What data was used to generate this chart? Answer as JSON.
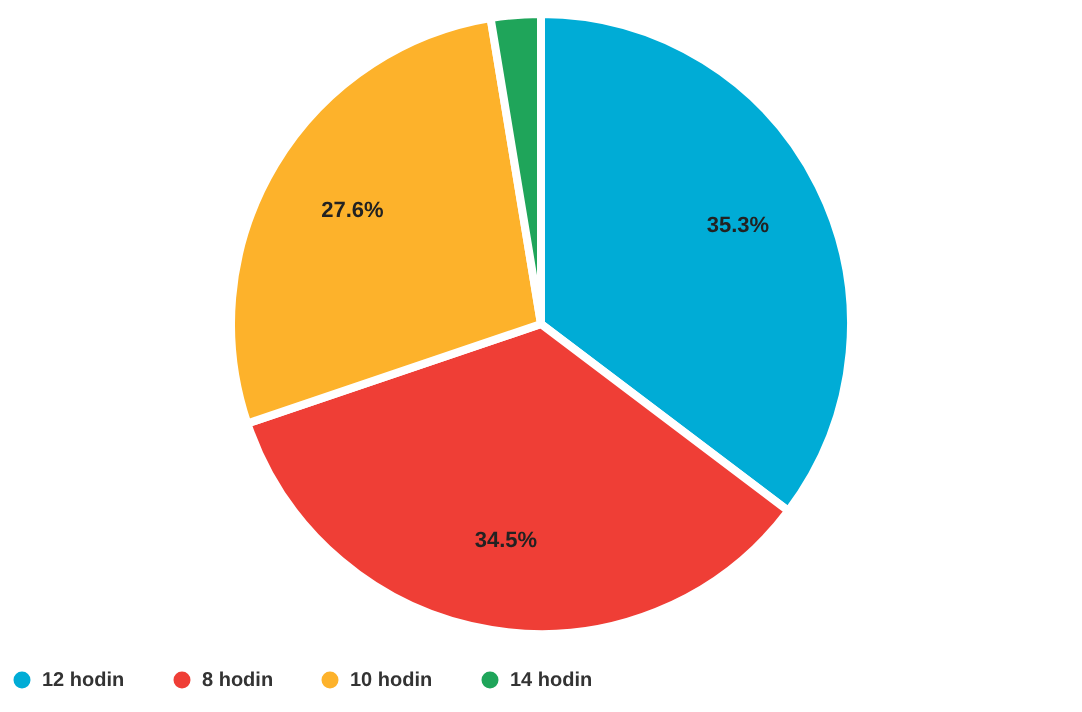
{
  "chart_data": {
    "type": "pie",
    "categories": [
      "12 hodin",
      "8 hodin",
      "10 hodin",
      "14 hodin"
    ],
    "values": [
      35.3,
      34.5,
      27.6,
      2.6
    ],
    "colors": [
      "#00acd6",
      "#ef3e36",
      "#fdb22b",
      "#1fa55a"
    ],
    "value_labels": [
      "35.3%",
      "34.5%",
      "27.6%",
      null
    ],
    "legend": "bottom"
  }
}
